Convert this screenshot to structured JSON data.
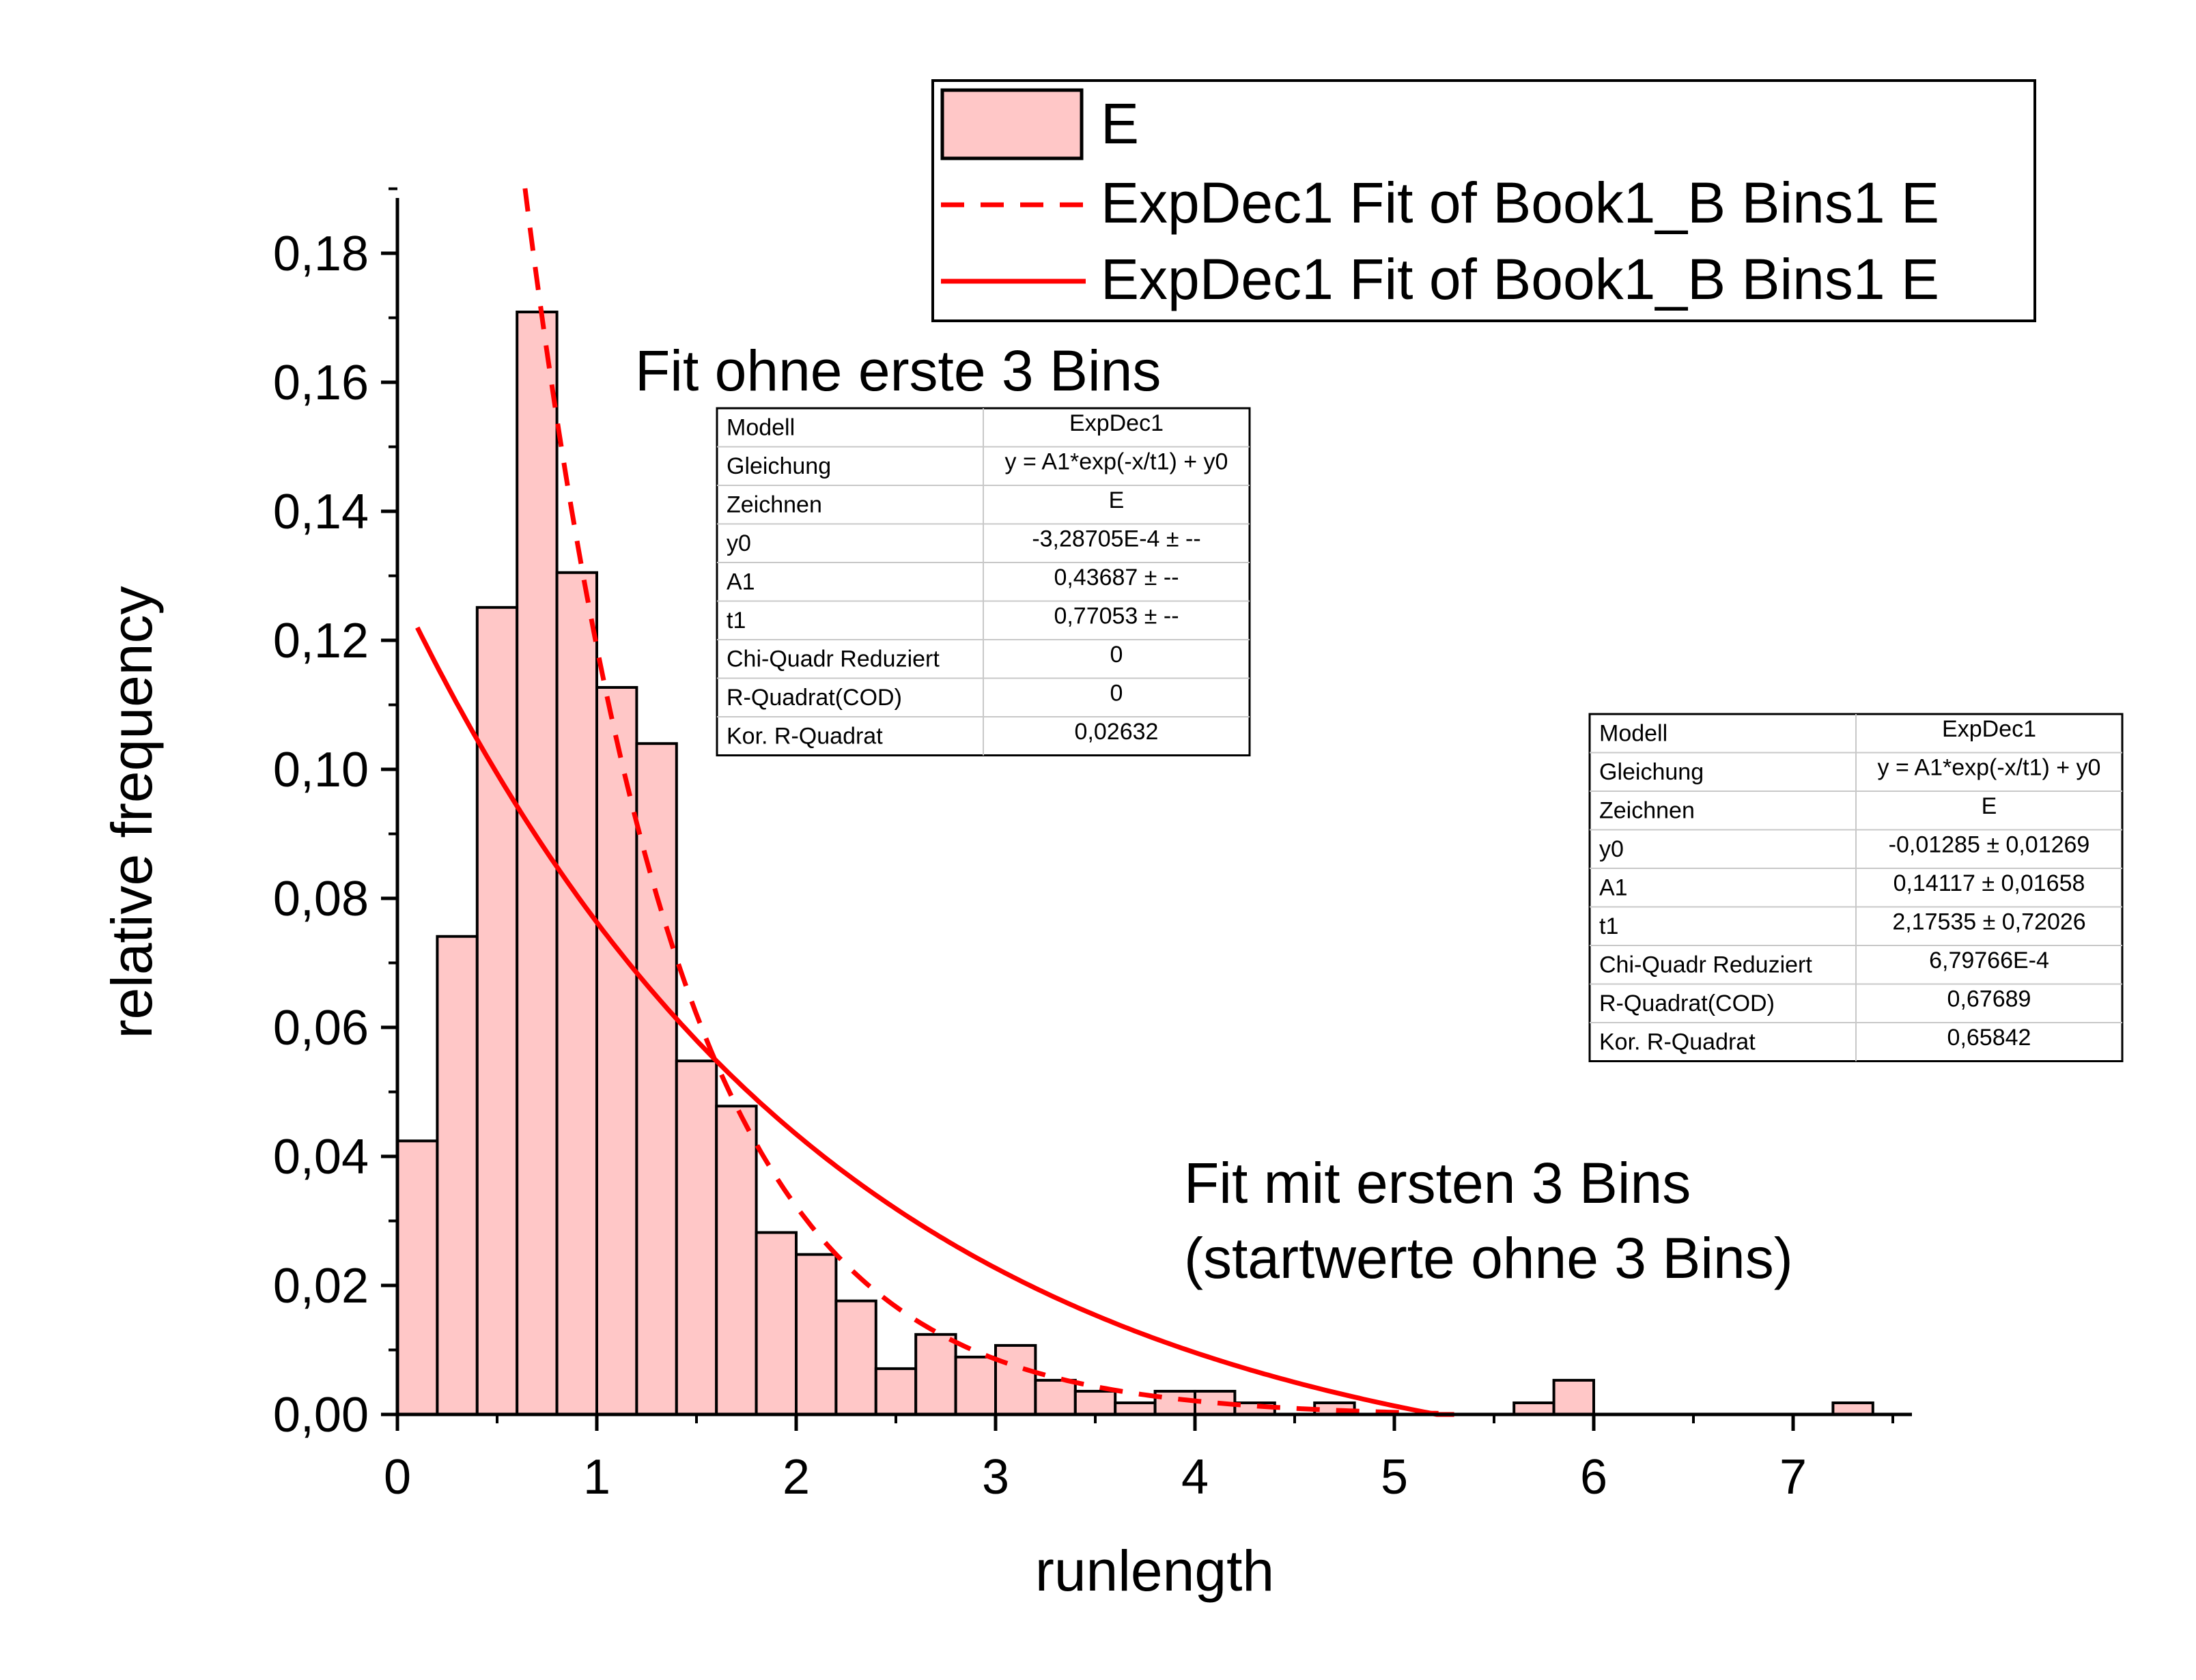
{
  "chart_data": {
    "type": "bar",
    "xlabel": "runlength",
    "ylabel": "relative frequency",
    "xlim": [
      0,
      7.6
    ],
    "ylim": [
      0,
      0.19
    ],
    "x_ticks": [
      0,
      1,
      2,
      3,
      4,
      5,
      6,
      7
    ],
    "x_tick_labels": [
      "0",
      "1",
      "2",
      "3",
      "4",
      "5",
      "6",
      "7"
    ],
    "y_ticks": [
      0,
      0.02,
      0.04,
      0.06,
      0.08,
      0.1,
      0.12,
      0.14,
      0.16,
      0.18
    ],
    "y_tick_labels": [
      "0,00",
      "0,02",
      "0,04",
      "0,06",
      "0,08",
      "0,10",
      "0,12",
      "0,14",
      "0,16",
      "0,18"
    ],
    "grid": false,
    "bin_width": 0.2,
    "bars": {
      "name": "E",
      "color": "#FFC7C7",
      "edge_color": "#000000",
      "x": [
        0.1,
        0.3,
        0.5,
        0.7,
        0.9,
        1.1,
        1.3,
        1.5,
        1.7,
        1.9,
        2.1,
        2.3,
        2.5,
        2.7,
        2.9,
        3.1,
        3.3,
        3.5,
        3.7,
        3.9,
        4.1,
        4.3,
        4.5,
        4.7,
        4.9,
        5.1,
        5.3,
        5.5,
        5.7,
        5.9,
        6.1,
        6.3,
        6.5,
        6.7,
        6.9,
        7.1,
        7.3
      ],
      "values": [
        0.0424,
        0.0741,
        0.1251,
        0.1709,
        0.1305,
        0.1127,
        0.104,
        0.0548,
        0.0478,
        0.0282,
        0.0248,
        0.0176,
        0.0071,
        0.0124,
        0.0089,
        0.0107,
        0.0053,
        0.0036,
        0.0018,
        0.0036,
        0.0036,
        0.0018,
        0.0,
        0.0018,
        0.0,
        0.0,
        0.0,
        0.0,
        0.0018,
        0.0053,
        0.0,
        0.0,
        0.0,
        0.0,
        0.0,
        0.0,
        0.0018
      ]
    },
    "fits": [
      {
        "name": "ExpDec1 Fit of Book1_B Bins1 E",
        "style": "dashed",
        "color": "#FF0000",
        "x_range": [
          0.64,
          5.3
        ],
        "y0": -0.000328705,
        "A1": 0.43687,
        "t1": 0.77053
      },
      {
        "name": "ExpDec1 Fit of Book1_B Bins1 E",
        "style": "solid",
        "color": "#FF0000",
        "x_range": [
          0.1,
          5.3
        ],
        "y0": -0.01285,
        "A1": 0.14117,
        "t1": 2.17535
      }
    ],
    "legend": {
      "placement": "top-right",
      "entries": [
        {
          "label": "E",
          "kind": "bar"
        },
        {
          "label": "ExpDec1 Fit of Book1_B Bins1 E",
          "kind": "dashed"
        },
        {
          "label": "ExpDec1 Fit of Book1_B Bins1 E",
          "kind": "solid"
        }
      ]
    },
    "annotations": [
      {
        "lines": [
          "Fit ohne erste 3 Bins"
        ]
      },
      {
        "lines": [
          "Fit mit ersten 3 Bins",
          "(startwerte ohne 3 Bins)"
        ]
      }
    ],
    "tables": [
      {
        "rows": [
          [
            "Modell",
            "ExpDec1"
          ],
          [
            "Gleichung",
            "y = A1*exp(-x/t1) + y0"
          ],
          [
            "Zeichnen",
            "E"
          ],
          [
            "y0",
            "-3,28705E-4 ± --"
          ],
          [
            "A1",
            "0,43687 ± --"
          ],
          [
            "t1",
            "0,77053 ± --"
          ],
          [
            "Chi-Quadr Reduziert",
            "0"
          ],
          [
            "R-Quadrat(COD)",
            "0"
          ],
          [
            "Kor. R-Quadrat",
            "0,02632"
          ]
        ]
      },
      {
        "rows": [
          [
            "Modell",
            "ExpDec1"
          ],
          [
            "Gleichung",
            "y = A1*exp(-x/t1) + y0"
          ],
          [
            "Zeichnen",
            "E"
          ],
          [
            "y0",
            "-0,01285 ± 0,01269"
          ],
          [
            "A1",
            "0,14117 ± 0,01658"
          ],
          [
            "t1",
            "2,17535 ± 0,72026"
          ],
          [
            "Chi-Quadr Reduziert",
            "6,79766E-4"
          ],
          [
            "R-Quadrat(COD)",
            "0,67689"
          ],
          [
            "Kor. R-Quadrat",
            "0,65842"
          ]
        ]
      }
    ]
  }
}
